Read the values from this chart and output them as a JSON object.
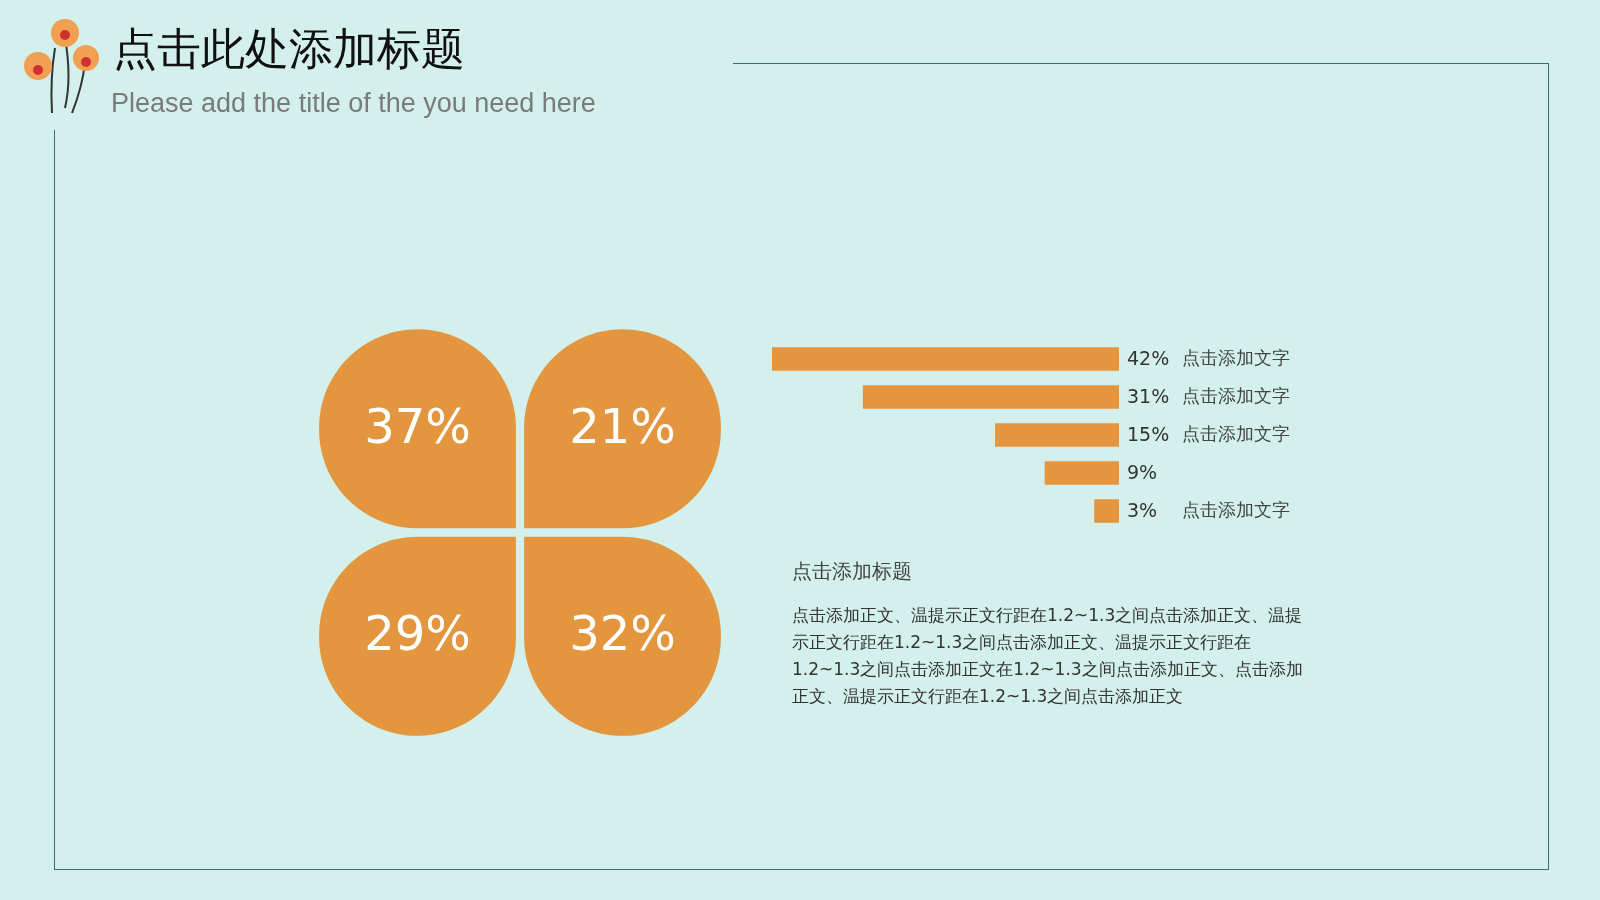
{
  "chart_data": [
    {
      "type": "other",
      "title": "点击此处添加标题",
      "subtitle": "Please add the title of the you need here",
      "values": [
        37,
        21,
        29,
        32
      ],
      "value_labels": [
        "37%",
        "21%",
        "29%",
        "32%"
      ],
      "color": "#e3963e"
    },
    {
      "type": "bar",
      "orientation": "horizontal",
      "categories": [
        "点击添加文字",
        "点击添加文字",
        "点击添加文字",
        null,
        "点击添加文字"
      ],
      "values": [
        42,
        31,
        15,
        9,
        3
      ],
      "value_labels": [
        "42%",
        "31%",
        "15%",
        "9%",
        "3%"
      ],
      "color": "#e3963e",
      "xlim": [
        42,
        0
      ],
      "tick_labels": "y",
      "annotations": [
        "点击添加标题",
        "点击添加正文、温提示正文行距在1.2~1.3之间点击添加正文、温提示正文行距在1.2~1.3之间点击添加正文、温提示正文行距在1.2~1.3之间点击添加正文在1.2~1.3之间点击添加正文、点击添加正文、温提示正文行距在1.2~1.3之间点击添加正文"
      ]
    }
  ]
}
